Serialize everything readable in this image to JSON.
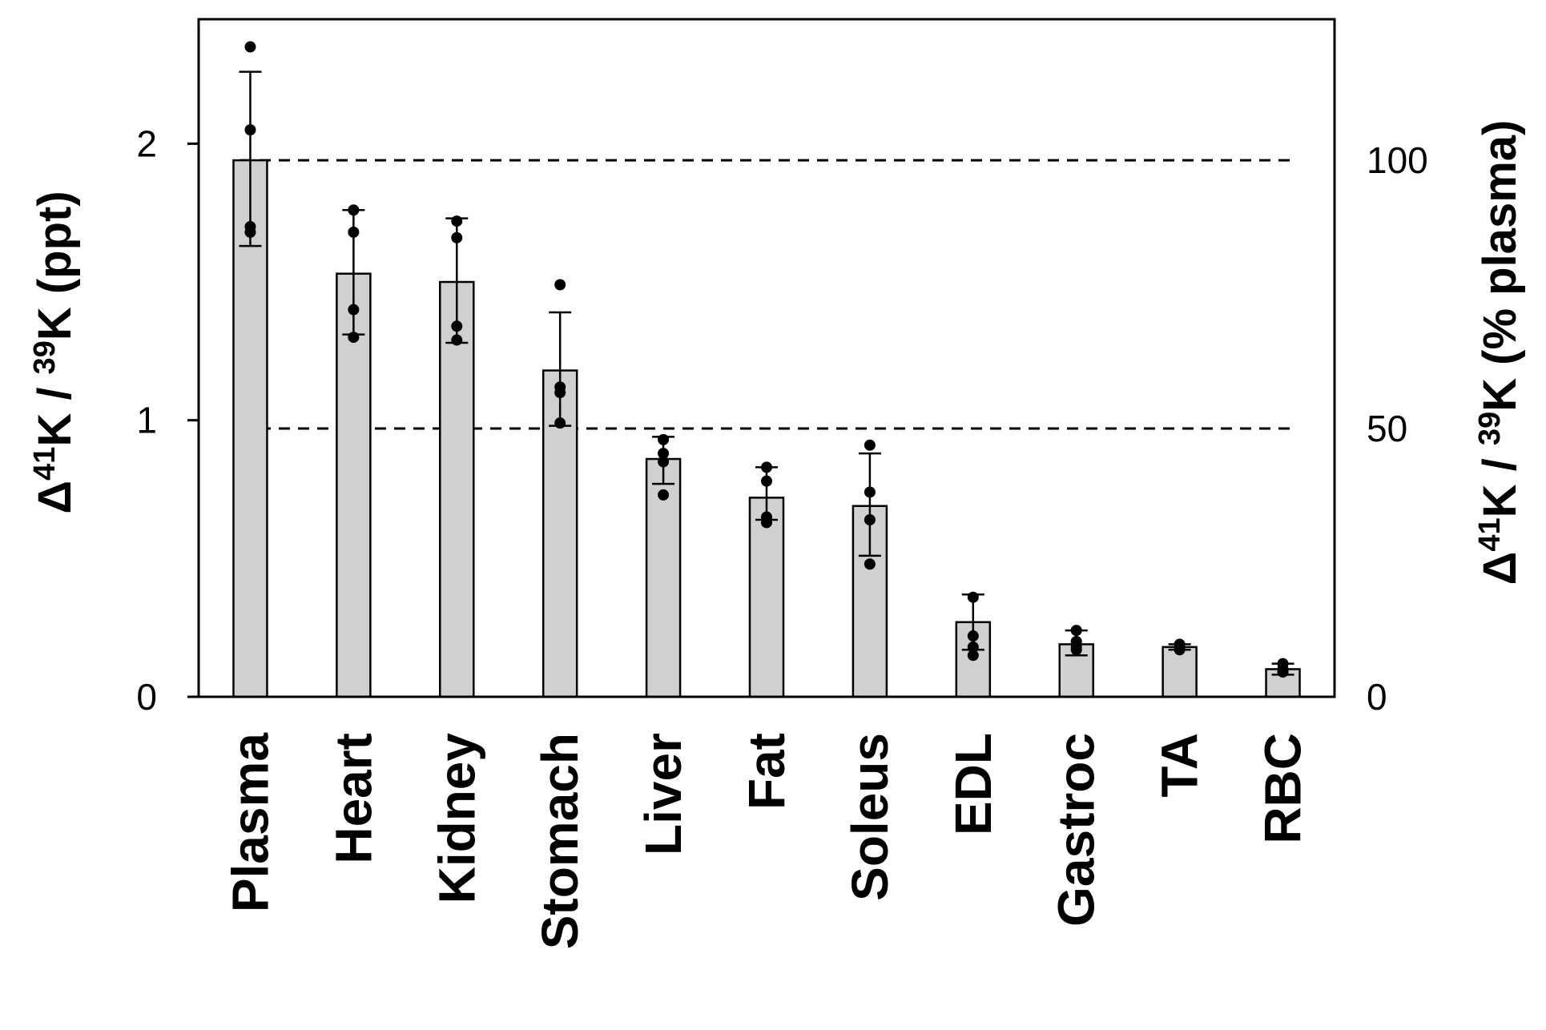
{
  "chart_data": {
    "type": "bar",
    "title": "",
    "categories": [
      "Plasma",
      "Heart",
      "Kidney",
      "Stomach",
      "Liver",
      "Fat",
      "Soleus",
      "EDL",
      "Gastroc",
      "TA",
      "RBC"
    ],
    "values": [
      1.94,
      1.53,
      1.5,
      1.18,
      0.86,
      0.72,
      0.69,
      0.27,
      0.19,
      0.18,
      0.1
    ],
    "error_low": [
      1.63,
      1.31,
      1.28,
      0.98,
      0.77,
      0.64,
      0.51,
      0.17,
      0.15,
      0.17,
      0.08
    ],
    "error_high": [
      2.26,
      1.76,
      1.73,
      1.39,
      0.94,
      0.83,
      0.88,
      0.37,
      0.24,
      0.19,
      0.12
    ],
    "points": [
      [
        2.35,
        2.05,
        1.7,
        1.68
      ],
      [
        1.76,
        1.68,
        1.4,
        1.3
      ],
      [
        1.72,
        1.66,
        1.34,
        1.29
      ],
      [
        1.49,
        1.12,
        1.1,
        0.99
      ],
      [
        0.93,
        0.88,
        0.85,
        0.73
      ],
      [
        0.83,
        0.78,
        0.65,
        0.63
      ],
      [
        0.91,
        0.74,
        0.64,
        0.48
      ],
      [
        0.36,
        0.22,
        0.18,
        0.15
      ],
      [
        0.24,
        0.2,
        0.18,
        0.17
      ],
      [
        0.19,
        0.18,
        0.18,
        0.17
      ],
      [
        0.12,
        0.1,
        0.09,
        0.09
      ]
    ],
    "ylim": [
      0,
      2.45
    ],
    "y_ticks": [
      "0",
      "1",
      "2"
    ],
    "y_tick_values": [
      0,
      1,
      2
    ],
    "y2_ticks": [
      "0",
      "50",
      "100"
    ],
    "y2_tick_values": [
      0,
      50,
      100
    ],
    "y2_reference": 1.94,
    "reference_lines": [
      0.97,
      1.94
    ],
    "ylabel": {
      "delta": "Δ",
      "sup1": "41",
      "mid": "K / ",
      "sup2": "39",
      "end": "K (ppt)"
    },
    "y2label": {
      "delta": "Δ",
      "sup1": "41",
      "mid": "K / ",
      "sup2": "39",
      "end": "K (% plasma)"
    },
    "grid": false,
    "legend": "none",
    "colors": {
      "bar_fill": "#d0d0d0",
      "bar_stroke": "#000000",
      "point": "#000000",
      "dashed_line": "#000000"
    }
  }
}
